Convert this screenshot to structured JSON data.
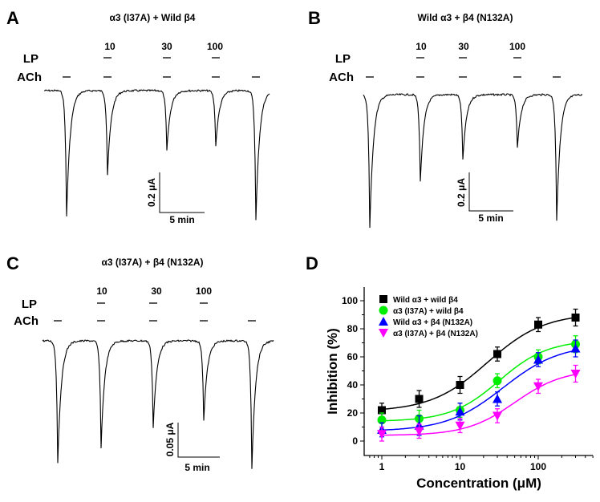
{
  "panels": {
    "A": {
      "letter": "A",
      "title": "α3 (I37A) + Wild β4",
      "lp_label": "LP",
      "ach_label": "ACh",
      "concentrations": [
        "10",
        "30",
        "100"
      ],
      "scale_y": "0.2 μA",
      "scale_x": "5 min"
    },
    "B": {
      "letter": "B",
      "title": "Wild α3 + β4 (N132A)",
      "lp_label": "LP",
      "ach_label": "ACh",
      "concentrations": [
        "10",
        "30",
        "100"
      ],
      "scale_y": "0.2 μA",
      "scale_x": "5 min"
    },
    "C": {
      "letter": "C",
      "title": "α3 (I37A) + β4 (N132A)",
      "lp_label": "LP",
      "ach_label": "ACh",
      "concentrations": [
        "10",
        "30",
        "100"
      ],
      "scale_y": "0.05 μA",
      "scale_x": "5 min"
    },
    "D": {
      "letter": "D"
    }
  },
  "chart_data": {
    "type": "scatter",
    "xlabel": "Concentration (μM)",
    "ylabel": "Inhibition (%)",
    "xscale": "log",
    "xlim": [
      0.7,
      500
    ],
    "ylim": [
      -10,
      110
    ],
    "xticks": [
      "1",
      "10",
      "100"
    ],
    "yticks": [
      "0",
      "20",
      "40",
      "60",
      "80",
      "100"
    ],
    "legend_position": "top-left",
    "x": [
      1,
      3,
      10,
      30,
      100,
      300
    ],
    "series": [
      {
        "name": "Wild α3 + wild β4",
        "color": "#000000",
        "marker": "square",
        "values": [
          22,
          30,
          40,
          62,
          83,
          88
        ],
        "errors": [
          5,
          6,
          6,
          5,
          5,
          6
        ]
      },
      {
        "name": "α3 (I37A) + wild β4",
        "color": "#00ee00",
        "marker": "circle",
        "values": [
          15,
          16,
          22,
          43,
          60,
          69
        ],
        "errors": [
          5,
          6,
          5,
          5,
          5,
          6
        ]
      },
      {
        "name": "Wild α3 + β4 (N132A)",
        "color": "#0000ff",
        "marker": "triangle-up",
        "values": [
          8,
          11,
          21,
          30,
          58,
          66
        ],
        "errors": [
          5,
          7,
          6,
          5,
          5,
          6
        ]
      },
      {
        "name": "α3 (I37A) + β4 (N132A)",
        "color": "#ff00ff",
        "marker": "triangle-down",
        "values": [
          5,
          7,
          11,
          18,
          39,
          48
        ],
        "errors": [
          5,
          5,
          5,
          5,
          5,
          6
        ]
      }
    ]
  }
}
